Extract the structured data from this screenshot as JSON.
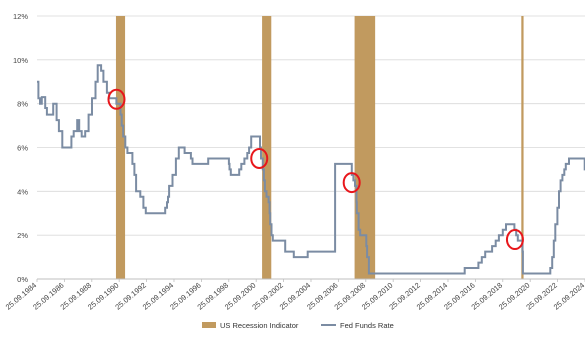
{
  "chart_data": {
    "type": "line",
    "ylim": [
      0,
      12
    ],
    "y_ticks": [
      "0%",
      "2%",
      "4%",
      "6%",
      "8%",
      "10%",
      "12%"
    ],
    "x_range": [
      "1984-09-25",
      "2024-09-25"
    ],
    "x_ticks": [
      "25.09.1984",
      "25.09.1986",
      "25.09.1988",
      "25.09.1990",
      "25.09.1992",
      "25.09.1994",
      "25.09.1996",
      "25.09.1998",
      "25.09.2000",
      "25.09.2002",
      "25.09.2004",
      "25.09.2006",
      "25.09.2008",
      "25.09.2010",
      "25.09.2012",
      "25.09.2014",
      "25.09.2016",
      "25.09.2018",
      "25.09.2020",
      "25.09.2022",
      "25.09.2024"
    ],
    "grid": "horizontal",
    "legend_position": "bottom-center",
    "legend": [
      {
        "label": "US Recession Indicator",
        "color": "#c19a5f",
        "kind": "box"
      },
      {
        "label": "Fed Funds Rate",
        "color": "#7b8ca3",
        "kind": "line"
      }
    ],
    "recessions": [
      {
        "start": "1990-07-01",
        "end": "1991-03-01"
      },
      {
        "start": "2001-03-01",
        "end": "2001-11-01"
      },
      {
        "start": "2007-12-01",
        "end": "2009-06-01"
      },
      {
        "start": "2020-02-01",
        "end": "2020-04-01"
      }
    ],
    "series": [
      {
        "name": "Fed Funds Rate",
        "color": "#7b8ca3",
        "x": [
          "1984-09-25",
          "1984-11-01",
          "1984-12-15",
          "1985-02-01",
          "1985-05-01",
          "1985-06-15",
          "1985-12-01",
          "1986-03-01",
          "1986-05-01",
          "1986-08-01",
          "1987-01-01",
          "1987-04-01",
          "1987-06-01",
          "1987-09-01",
          "1987-10-25",
          "1988-01-01",
          "1988-04-01",
          "1988-07-01",
          "1988-10-01",
          "1989-01-01",
          "1989-03-01",
          "1989-06-01",
          "1989-08-01",
          "1989-11-01",
          "1990-01-01",
          "1990-07-13",
          "1990-10-29",
          "1990-12-01",
          "1991-01-09",
          "1991-03-08",
          "1991-05-01",
          "1991-09-13",
          "1991-11-06",
          "1991-12-20",
          "1992-04-09",
          "1992-07-02",
          "1992-09-04",
          "1994-02-04",
          "1994-03-22",
          "1994-04-18",
          "1994-05-17",
          "1994-08-16",
          "1994-11-15",
          "1995-02-01",
          "1995-07-06",
          "1995-12-19",
          "1996-01-31",
          "1997-03-25",
          "1998-09-29",
          "1998-10-15",
          "1998-11-17",
          "1999-06-30",
          "1999-08-24",
          "1999-11-16",
          "2000-02-02",
          "2000-03-21",
          "2000-05-16",
          "2001-01-03",
          "2001-01-31",
          "2001-03-20",
          "2001-04-18",
          "2001-05-15",
          "2001-06-27",
          "2001-08-21",
          "2001-09-17",
          "2001-10-02",
          "2001-11-06",
          "2001-12-11",
          "2002-11-06",
          "2003-06-25",
          "2004-06-30",
          "2006-06-29",
          "2007-09-18",
          "2007-10-31",
          "2007-12-11",
          "2008-01-22",
          "2008-01-30",
          "2008-03-18",
          "2008-04-30",
          "2008-10-08",
          "2008-10-29",
          "2008-12-16",
          "2015-12-16",
          "2016-12-14",
          "2017-03-15",
          "2017-06-14",
          "2017-12-13",
          "2018-03-21",
          "2018-06-13",
          "2018-09-26",
          "2018-12-19",
          "2019-07-31",
          "2019-09-18",
          "2019-10-30",
          "2020-03-03",
          "2020-03-15",
          "2022-03-16",
          "2022-05-04",
          "2022-06-15",
          "2022-07-27",
          "2022-09-21",
          "2022-11-02",
          "2022-12-14",
          "2023-02-01",
          "2023-03-22",
          "2023-05-03",
          "2023-07-26",
          "2024-09-18",
          "2024-09-25"
        ],
        "y": [
          9.0,
          8.25,
          8.0,
          8.3,
          7.8,
          7.5,
          8.0,
          7.25,
          6.75,
          6.0,
          6.0,
          6.5,
          6.75,
          7.25,
          6.75,
          6.5,
          6.75,
          7.5,
          8.25,
          9.0,
          9.75,
          9.5,
          9.0,
          8.5,
          8.25,
          8.0,
          7.5,
          7.0,
          6.5,
          6.0,
          5.75,
          5.25,
          4.75,
          4.0,
          3.75,
          3.25,
          3.0,
          3.25,
          3.5,
          3.75,
          4.25,
          4.75,
          5.5,
          6.0,
          5.75,
          5.5,
          5.25,
          5.5,
          5.25,
          5.0,
          4.75,
          5.0,
          5.25,
          5.5,
          5.75,
          6.0,
          6.5,
          6.0,
          5.5,
          5.0,
          4.5,
          4.0,
          3.75,
          3.5,
          3.0,
          2.5,
          2.0,
          1.75,
          1.25,
          1.0,
          1.25,
          5.25,
          4.75,
          4.5,
          4.25,
          3.5,
          3.0,
          2.25,
          2.0,
          1.5,
          1.0,
          0.25,
          0.5,
          0.75,
          1.0,
          1.25,
          1.5,
          1.75,
          2.0,
          2.25,
          2.5,
          2.25,
          2.0,
          1.75,
          1.25,
          0.25,
          0.5,
          1.0,
          1.75,
          2.5,
          3.25,
          4.0,
          4.5,
          4.75,
          5.0,
          5.25,
          5.5,
          5.0,
          5.0
        ]
      }
    ],
    "highlights": [
      {
        "date": "1990-07-15",
        "value": 8.2
      },
      {
        "date": "2000-12-15",
        "value": 5.5
      },
      {
        "date": "2007-09-15",
        "value": 4.4
      },
      {
        "date": "2019-08-15",
        "value": 1.8
      }
    ]
  }
}
